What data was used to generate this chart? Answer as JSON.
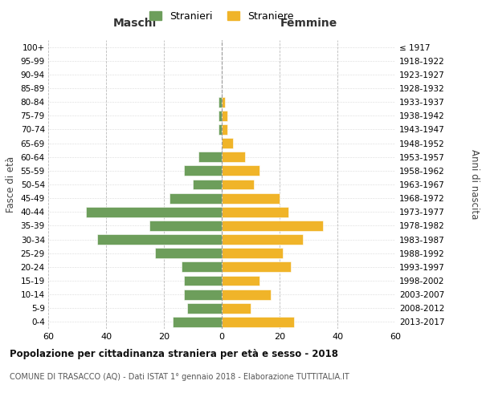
{
  "age_groups": [
    "0-4",
    "5-9",
    "10-14",
    "15-19",
    "20-24",
    "25-29",
    "30-34",
    "35-39",
    "40-44",
    "45-49",
    "50-54",
    "55-59",
    "60-64",
    "65-69",
    "70-74",
    "75-79",
    "80-84",
    "85-89",
    "90-94",
    "95-99",
    "100+"
  ],
  "birth_years": [
    "2013-2017",
    "2008-2012",
    "2003-2007",
    "1998-2002",
    "1993-1997",
    "1988-1992",
    "1983-1987",
    "1978-1982",
    "1973-1977",
    "1968-1972",
    "1963-1967",
    "1958-1962",
    "1953-1957",
    "1948-1952",
    "1943-1947",
    "1938-1942",
    "1933-1937",
    "1928-1932",
    "1923-1927",
    "1918-1922",
    "≤ 1917"
  ],
  "males": [
    17,
    12,
    13,
    13,
    14,
    23,
    43,
    25,
    47,
    18,
    10,
    13,
    8,
    0,
    1,
    1,
    1,
    0,
    0,
    0,
    0
  ],
  "females": [
    25,
    10,
    17,
    13,
    24,
    21,
    28,
    35,
    23,
    20,
    11,
    13,
    8,
    4,
    2,
    2,
    1,
    0,
    0,
    0,
    0
  ],
  "male_color": "#6d9e5b",
  "female_color": "#f0b429",
  "title": "Popolazione per cittadinanza straniera per età e sesso - 2018",
  "subtitle": "COMUNE DI TRASACCO (AQ) - Dati ISTAT 1° gennaio 2018 - Elaborazione TUTTITALIA.IT",
  "legend_male": "Stranieri",
  "legend_female": "Straniere",
  "xlabel_left": "Maschi",
  "xlabel_right": "Femmine",
  "ylabel_left": "Fasce di età",
  "ylabel_right": "Anni di nascita",
  "xlim": 60,
  "background_color": "#ffffff",
  "grid_color": "#bbbbbb"
}
